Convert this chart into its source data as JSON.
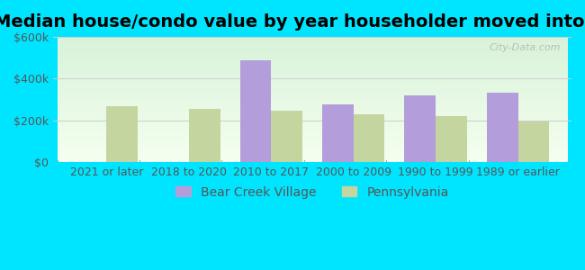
{
  "title": "Median house/condo value by year householder moved into unit",
  "categories": [
    "2021 or later",
    "2018 to 2020",
    "2010 to 2017",
    "2000 to 2009",
    "1990 to 1999",
    "1989 or earlier"
  ],
  "bear_creek": [
    null,
    null,
    490000,
    275000,
    320000,
    335000
  ],
  "pennsylvania": [
    270000,
    255000,
    245000,
    230000,
    220000,
    195000
  ],
  "bear_creek_color": "#b39ddb",
  "pennsylvania_color": "#c5d5a0",
  "bar_width": 0.38,
  "ylim": [
    0,
    600000
  ],
  "yticks": [
    0,
    200000,
    400000,
    600000
  ],
  "ytick_labels": [
    "$0",
    "$200k",
    "$400k",
    "$600k"
  ],
  "legend_bear_creek": "Bear Creek Village",
  "legend_pennsylvania": "Pennsylvania",
  "outer_bg": "#00e5ff",
  "watermark": "City-Data.com",
  "grid_color": "#cccccc",
  "title_fontsize": 14,
  "tick_fontsize": 9,
  "legend_fontsize": 10
}
